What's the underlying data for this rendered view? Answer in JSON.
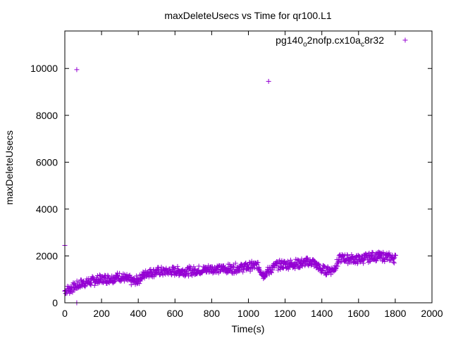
{
  "chart_data": {
    "type": "scatter",
    "title": "maxDeleteUsecs vs Time for qr100.L1",
    "xlabel": "Time(s)",
    "ylabel": "maxDeleteUsecs",
    "xlim": [
      0,
      2000
    ],
    "ylim": [
      0,
      11600
    ],
    "xticks": [
      "0",
      "200",
      "400",
      "600",
      "800",
      "1000",
      "1200",
      "1400",
      "1600",
      "1800",
      "2000"
    ],
    "yticks": [
      "0",
      "2000",
      "4000",
      "6000",
      "8000",
      "10000"
    ],
    "grid": false,
    "legend_position": "top-right",
    "legend": {
      "parts": [
        {
          "text": "pg140",
          "sub": false
        },
        {
          "text": "o",
          "sub": true
        },
        {
          "text": "2nofp.cx10a",
          "sub": false
        },
        {
          "text": "c",
          "sub": true
        },
        {
          "text": "8r32",
          "sub": false
        }
      ]
    },
    "series": [
      {
        "name": "pg140_o2nofp.cx10a_c8r32",
        "color": "#9400d3",
        "marker": "plus",
        "outliers": [
          [
            0,
            2450
          ],
          [
            65,
            9950
          ],
          [
            1110,
            9450
          ],
          [
            65,
            0
          ]
        ],
        "trend": [
          [
            0,
            500
          ],
          [
            100,
            850
          ],
          [
            200,
            1000
          ],
          [
            300,
            1100
          ],
          [
            380,
            900
          ],
          [
            400,
            1000
          ],
          [
            450,
            1300
          ],
          [
            600,
            1350
          ],
          [
            700,
            1350
          ],
          [
            800,
            1450
          ],
          [
            900,
            1450
          ],
          [
            1000,
            1550
          ],
          [
            1050,
            1600
          ],
          [
            1080,
            1200
          ],
          [
            1100,
            1300
          ],
          [
            1150,
            1600
          ],
          [
            1300,
            1700
          ],
          [
            1350,
            1750
          ],
          [
            1400,
            1400
          ],
          [
            1460,
            1400
          ],
          [
            1500,
            1900
          ],
          [
            1600,
            1850
          ],
          [
            1700,
            2000
          ],
          [
            1800,
            1900
          ]
        ],
        "spread": 300,
        "x_step": 4
      }
    ]
  }
}
